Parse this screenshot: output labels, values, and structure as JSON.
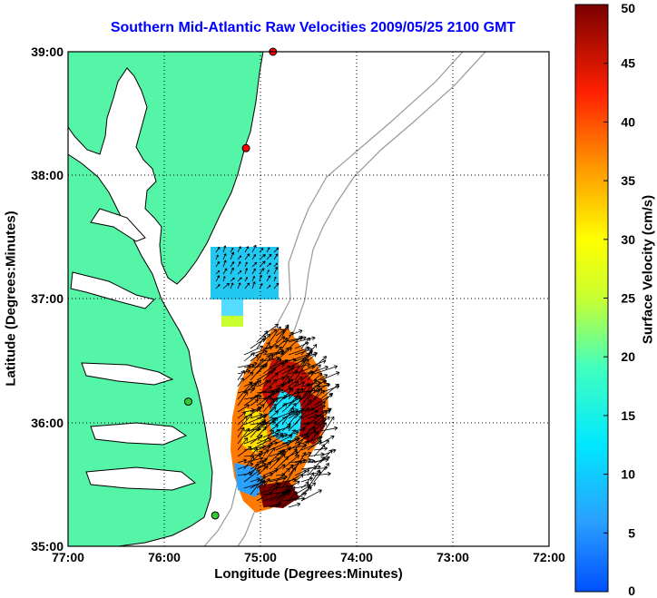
{
  "title": "Southern Mid-Atlantic Raw Velocities 2009/05/25 2100 GMT",
  "chart_data": {
    "type": "map",
    "xlabel": "Longitude (Degrees:Minutes)",
    "ylabel": "Latitude (Degrees:Minutes)",
    "x_ticks": [
      "77:00",
      "76:00",
      "75:00",
      "74:00",
      "73:00",
      "72:00"
    ],
    "y_ticks": [
      "39:00",
      "38:00",
      "37:00",
      "36:00",
      "35:00"
    ],
    "xlim": [
      -77,
      -72
    ],
    "ylim": [
      35,
      39
    ],
    "grid": true,
    "colorbar": {
      "label": "Surface Velocity (cm/s)",
      "range": [
        0,
        50
      ],
      "ticks": [
        "50",
        "45",
        "40",
        "35",
        "30",
        "25",
        "20",
        "15",
        "10",
        "5",
        "0"
      ]
    },
    "colors": {
      "land": "#55f5a8",
      "coast": "#000000",
      "bathymetry": "#999999",
      "title": "#0000ff",
      "station_active": "#ff0000",
      "station_inactive": "#33cc33"
    },
    "stations": [
      {
        "lon": -74.87,
        "lat": 39.0,
        "status": "red"
      },
      {
        "lon": -75.15,
        "lat": 38.22,
        "status": "red"
      },
      {
        "lon": -75.75,
        "lat": 36.17,
        "status": "green"
      },
      {
        "lon": -75.47,
        "lat": 35.25,
        "status": "green"
      }
    ]
  }
}
